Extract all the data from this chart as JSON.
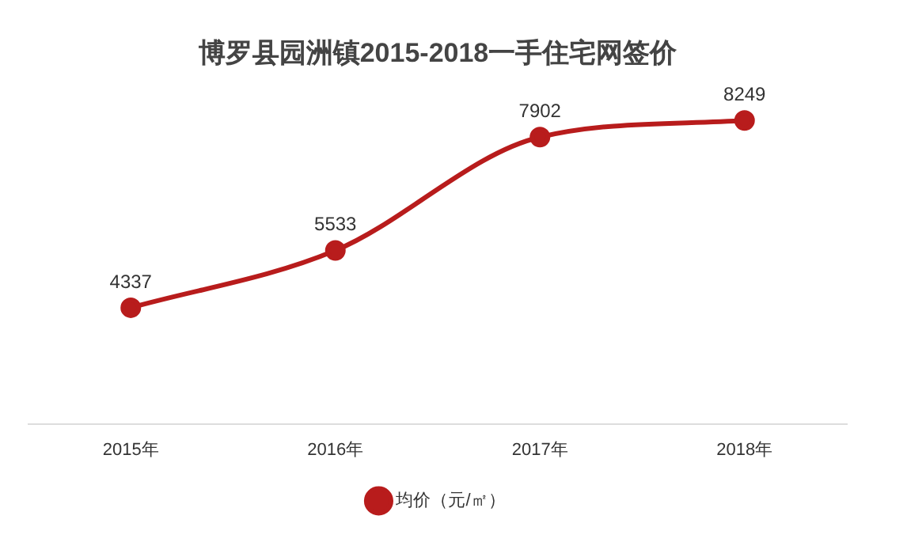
{
  "chart_data": {
    "type": "line",
    "title": "博罗县园洲镇2015-2018一手住宅网签价",
    "categories": [
      "2015年",
      "2016年",
      "2017年",
      "2018年"
    ],
    "series": [
      {
        "name": "均价（元/㎡）",
        "color": "#b81c1c",
        "values": [
          4337,
          5533,
          7902,
          8249
        ]
      }
    ],
    "data_labels": true,
    "legend": "bottom",
    "grid": false,
    "marker": "circle",
    "line_style": "solid",
    "tick_labels": "x"
  }
}
